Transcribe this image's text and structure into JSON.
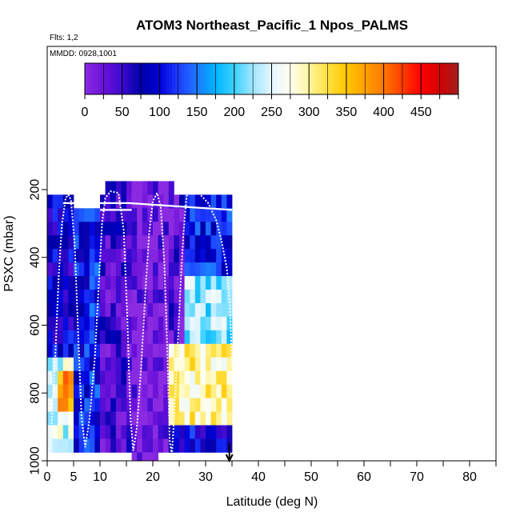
{
  "chart_data": {
    "type": "heatmap",
    "title": "ATOM3 Northeast_Pacific_1 Npos_PALMS",
    "flights_note": "Flts: 1,2",
    "dates_note": "MMDD: 0928,1001",
    "xlabel": "Latitude (deg N)",
    "ylabel": "PSXC (mbar)",
    "xlim": [
      0,
      85
    ],
    "ylim": [
      1000,
      0
    ],
    "x_ticks": [
      0,
      5,
      10,
      20,
      30,
      40,
      50,
      60,
      70,
      80
    ],
    "y_ticks": [
      200,
      400,
      600,
      800,
      1000
    ],
    "colorbar": {
      "range": [
        0,
        500
      ],
      "ticks": [
        0,
        50,
        100,
        150,
        200,
        250,
        300,
        350,
        400,
        450
      ],
      "colors": [
        "#8a2be2",
        "#6a10d8",
        "#3c0ad0",
        "#0000a8",
        "#0000d8",
        "#1e3cff",
        "#1e78ff",
        "#00b4ff",
        "#3cd2ff",
        "#a0e6ff",
        "#e6f6ff",
        "#fffff0",
        "#fff5a0",
        "#ffe040",
        "#ffc800",
        "#ffa000",
        "#ff7800",
        "#ff3c00",
        "#ff0000",
        "#d20000",
        "#a02020"
      ]
    },
    "bins": {
      "lat_edges": [
        0,
        1,
        2,
        3,
        4,
        5,
        6,
        7,
        8,
        9,
        10,
        11,
        12,
        13,
        14,
        15,
        16,
        17,
        18,
        19,
        20,
        21,
        22,
        23,
        24,
        25,
        26,
        27,
        28,
        29,
        30,
        31,
        32,
        33,
        34,
        35
      ],
      "p_edges": [
        175,
        215,
        255,
        295,
        335,
        375,
        415,
        455,
        495,
        535,
        575,
        615,
        655,
        695,
        735,
        775,
        815,
        855,
        895,
        935,
        975,
        1000
      ]
    },
    "missing_cells": [
      [
        0,
        0,
        1,
        175,
        215
      ],
      [
        1,
        10,
        1,
        175,
        215
      ],
      [
        2,
        24,
        11,
        175,
        215
      ],
      [
        3,
        26,
        5,
        975,
        1000
      ],
      [
        4,
        21,
        2,
        975,
        1000
      ]
    ],
    "value_regions": [
      {
        "lat": [
          0,
          5
        ],
        "p": [
          215,
          695
        ],
        "value": 80
      },
      {
        "lat": [
          0,
          5
        ],
        "p": [
          695,
          975
        ],
        "value": 250
      },
      {
        "lat": [
          2,
          5
        ],
        "p": [
          735,
          855
        ],
        "value": 380
      },
      {
        "lat": [
          5,
          10
        ],
        "p": [
          255,
          975
        ],
        "value": 110
      },
      {
        "lat": [
          10,
          16
        ],
        "p": [
          175,
          975
        ],
        "value": 45
      },
      {
        "lat": [
          16,
          23
        ],
        "p": [
          175,
          1000
        ],
        "value": 15
      },
      {
        "lat": [
          23,
          26
        ],
        "p": [
          175,
          975
        ],
        "value": 30
      },
      {
        "lat": [
          26,
          35
        ],
        "p": [
          175,
          455
        ],
        "value": 110
      },
      {
        "lat": [
          26,
          35
        ],
        "p": [
          455,
          655
        ],
        "value": 220
      },
      {
        "lat": [
          23,
          35
        ],
        "p": [
          655,
          895
        ],
        "value": 300
      },
      {
        "lat": [
          23,
          35
        ],
        "p": [
          895,
          975
        ],
        "value": 90
      }
    ],
    "flight_tracks": [
      {
        "lat": [
          0.3,
          0.8,
          1.5,
          2.2,
          2.8,
          3.5,
          4.0,
          4.5,
          5.2,
          5.8,
          6.5,
          7.2,
          8.0,
          9.0,
          9.8,
          10.4,
          11.0,
          12.0,
          13.5,
          14.5,
          15.2,
          15.8,
          16.3,
          17.0,
          17.8,
          18.6,
          19.3,
          20.0,
          20.8,
          21.5,
          22.2,
          22.8,
          23.2,
          23.6,
          24.0,
          24.6,
          25.2,
          25.8,
          26.4,
          27.2,
          28.0,
          29.0,
          30.5,
          32.0,
          33.0,
          34.0,
          34.6,
          35.0
        ],
        "p": [
          985,
          900,
          700,
          450,
          300,
          225,
          215,
          230,
          360,
          600,
          870,
          960,
          880,
          700,
          470,
          300,
          225,
          205,
          210,
          320,
          590,
          880,
          970,
          900,
          720,
          500,
          330,
          235,
          210,
          250,
          420,
          700,
          940,
          985,
          880,
          700,
          500,
          330,
          220,
          195,
          200,
          215,
          240,
          290,
          350,
          430,
          540,
          720
        ]
      },
      {
        "lat": [
          3.0,
          15.5,
          35.0
        ],
        "p": [
          240,
          240,
          260
        ]
      },
      {
        "lat": [
          10.0,
          16.0
        ],
        "p": [
          260,
          260
        ]
      },
      {
        "lat": [
          27.5,
          32.0
        ],
        "p": [
          200,
          200
        ]
      }
    ],
    "arrow": {
      "lat": 34.5,
      "p": 1000
    }
  }
}
